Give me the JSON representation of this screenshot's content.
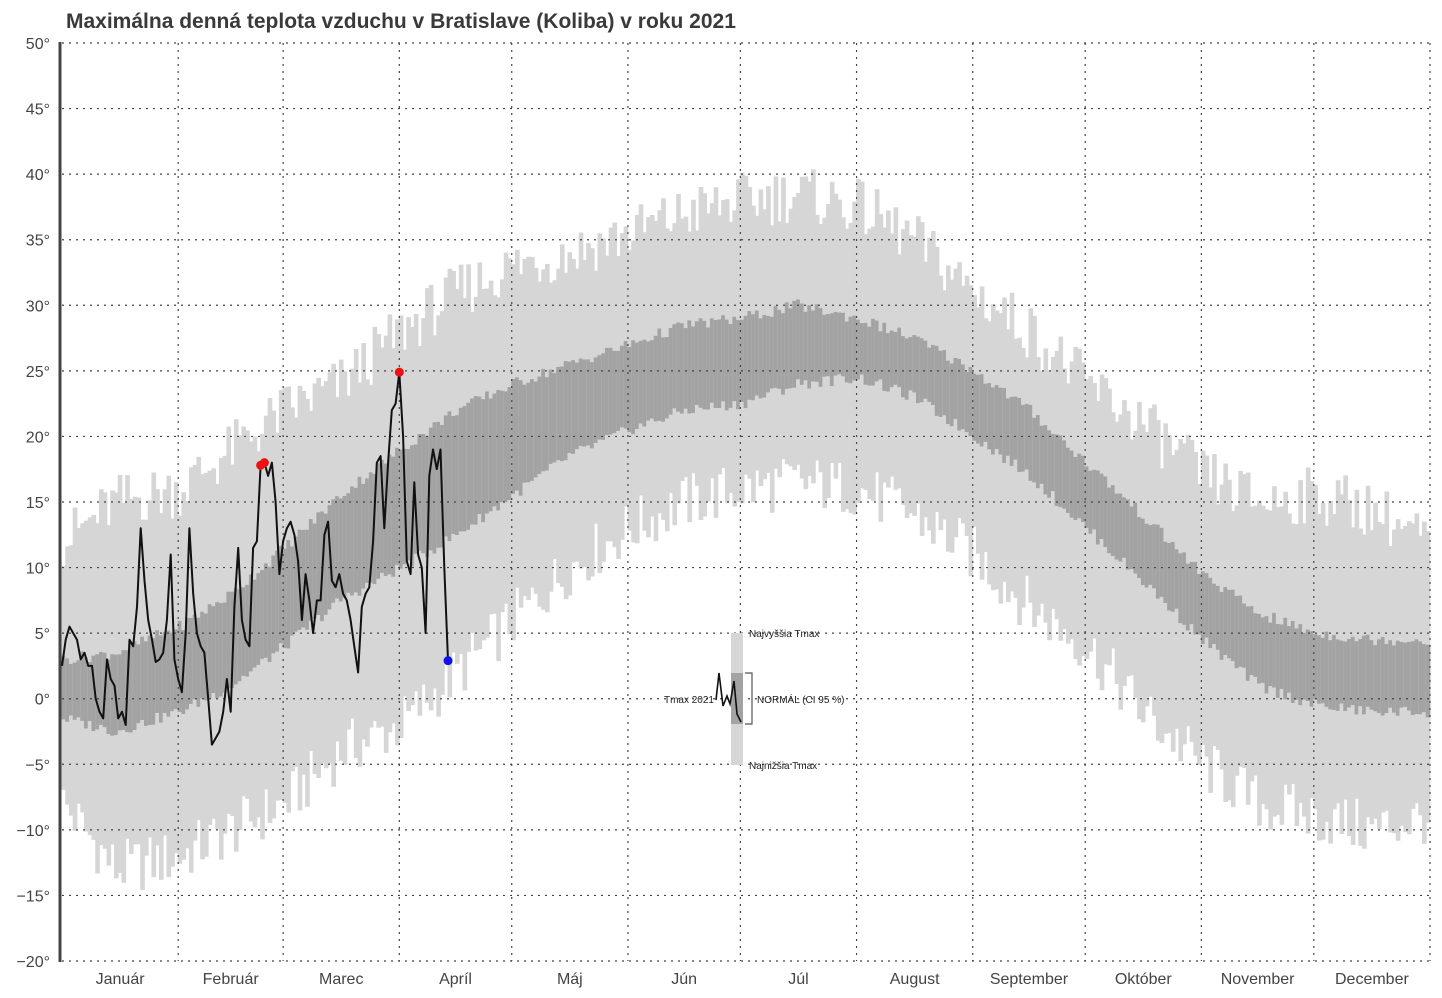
{
  "chart_data": {
    "type": "line",
    "title": "Maximálna denná teplota vzduchu v Bratislave (Koliba) v roku 2021",
    "xlabel": "",
    "ylabel": "",
    "ylim": [
      -20,
      50
    ],
    "yticks": [
      -20,
      -15,
      -10,
      -5,
      0,
      5,
      10,
      15,
      20,
      25,
      30,
      35,
      40,
      45,
      50
    ],
    "ytick_labels": [
      "−20°",
      "−15°",
      "−10°",
      "−5°",
      "0°",
      "5°",
      "10°",
      "15°",
      "20°",
      "25°",
      "30°",
      "35°",
      "40°",
      "45°",
      "50°"
    ],
    "months": [
      "Január",
      "Február",
      "Marec",
      "Apríl",
      "Máj",
      "Jún",
      "Júl",
      "August",
      "September",
      "Október",
      "November",
      "December"
    ],
    "month_starts_doy": [
      1,
      32,
      60,
      91,
      121,
      152,
      182,
      213,
      244,
      274,
      305,
      335
    ],
    "days_in_year": 365,
    "grid": true,
    "colors": {
      "record_band": "#d6d6d6",
      "normal_band": "#a3a3a3",
      "series_line": "#111111",
      "record_high_marker": "#ee1111",
      "record_low_marker": "#1111ee",
      "grid": "#444444"
    },
    "envelope_anchors": {
      "doy": [
        1,
        15,
        32,
        46,
        60,
        75,
        91,
        106,
        121,
        136,
        152,
        167,
        182,
        197,
        213,
        228,
        244,
        259,
        274,
        289,
        305,
        320,
        335,
        350,
        365
      ],
      "normal_low": [
        -1.5,
        -2.5,
        -1.0,
        1.0,
        4.0,
        7.5,
        10.0,
        12.5,
        15.5,
        18.5,
        20.5,
        22.0,
        22.5,
        24.0,
        24.5,
        23.0,
        20.0,
        17.0,
        13.0,
        9.0,
        4.5,
        1.0,
        -0.5,
        -1.0,
        -1.0
      ],
      "normal_high": [
        3.0,
        3.5,
        5.5,
        8.0,
        11.5,
        15.5,
        19.0,
        22.0,
        24.0,
        25.5,
        27.0,
        28.5,
        29.0,
        30.0,
        29.0,
        27.5,
        25.0,
        22.0,
        18.0,
        14.0,
        9.5,
        6.5,
        5.0,
        4.5,
        4.5
      ],
      "record_low": [
        -8.0,
        -13.0,
        -12.0,
        -10.0,
        -8.0,
        -4.0,
        -2.0,
        2.0,
        6.0,
        10.0,
        13.0,
        15.0,
        16.0,
        16.5,
        16.0,
        14.0,
        11.0,
        7.0,
        4.0,
        -1.0,
        -5.0,
        -8.0,
        -9.0,
        -10.0,
        -9.0
      ],
      "record_high": [
        12.0,
        15.0,
        16.0,
        19.0,
        22.0,
        24.0,
        28.0,
        31.0,
        33.0,
        34.0,
        35.5,
        37.0,
        38.0,
        38.5,
        37.5,
        35.0,
        31.0,
        28.0,
        24.0,
        21.0,
        17.0,
        15.0,
        15.5,
        14.5,
        12.0
      ]
    },
    "series": [
      {
        "name": "Tmax 2021",
        "start_doy": 1,
        "values": [
          2.5,
          4.5,
          5.5,
          5.0,
          4.5,
          3.0,
          3.5,
          2.5,
          2.5,
          0.0,
          -1.0,
          -1.5,
          3.0,
          1.5,
          1.0,
          -1.5,
          -1.0,
          -2.0,
          4.5,
          4.0,
          7.0,
          13.0,
          9.0,
          6.0,
          4.5,
          2.8,
          3.0,
          3.5,
          6.0,
          11.0,
          3.0,
          1.5,
          0.5,
          5.0,
          13.0,
          8.0,
          5.0,
          4.0,
          3.5,
          0.0,
          -3.5,
          -3.0,
          -2.5,
          -1.0,
          1.5,
          -1.0,
          7.0,
          11.5,
          6.0,
          4.5,
          4.0,
          11.5,
          12.0,
          17.8,
          18.0,
          17.0,
          18.0,
          15.0,
          9.5,
          12.0,
          13.0,
          13.5,
          12.5,
          10.5,
          6.0,
          9.5,
          7.5,
          5.0,
          7.5,
          7.5,
          12.5,
          13.5,
          9.0,
          8.5,
          9.5,
          8.0,
          7.5,
          6.0,
          4.0,
          2.0,
          7.0,
          8.0,
          8.5,
          12.0,
          18.0,
          18.5,
          13.0,
          18.0,
          22.0,
          22.5,
          24.9,
          20.0,
          10.5,
          9.5,
          16.5,
          11.0,
          10.0,
          5.0,
          17.0,
          19.0,
          17.5,
          19.0,
          10.0,
          2.9
        ]
      }
    ],
    "record_high_markers": [
      {
        "doy": 54,
        "value": 17.8
      },
      {
        "doy": 55,
        "value": 18.0
      },
      {
        "doy": 91,
        "value": 24.9
      }
    ],
    "record_low_markers": [
      {
        "doy": 104,
        "value": 2.9
      }
    ],
    "legend": {
      "placement": "center",
      "labels": {
        "highest": "Najvyššia Tmax",
        "series": "Tmax 2021",
        "normal": "NORMÁL (CI 95 %)",
        "lowest": "Najnižšia Tmax"
      }
    }
  }
}
